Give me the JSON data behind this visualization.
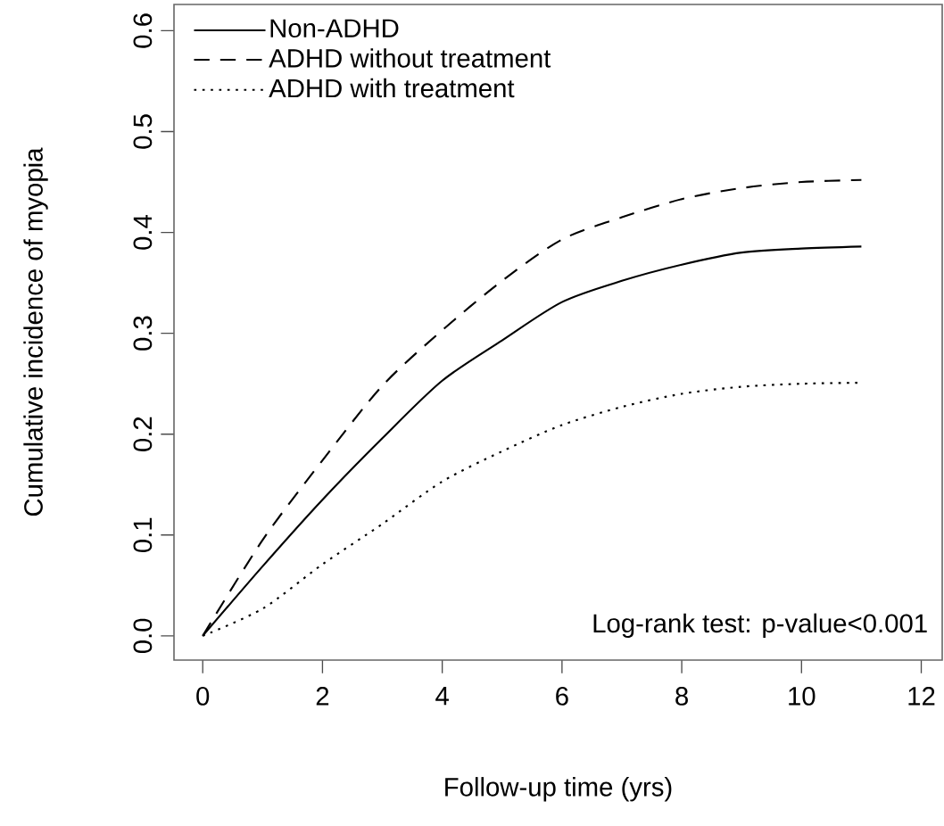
{
  "chart_data": {
    "type": "line",
    "xlabel": "Follow-up time (yrs)",
    "ylabel": "Cumulative incidence of myopia",
    "x": [
      0,
      1,
      2,
      3,
      4,
      5,
      6,
      7,
      8,
      9,
      10,
      11
    ],
    "series": [
      {
        "name": "Non-ADHD",
        "color": "#000000",
        "line_style": "solid",
        "values": [
          0,
          0.069,
          0.135,
          0.196,
          0.253,
          0.293,
          0.331,
          0.352,
          0.368,
          0.38,
          0.384,
          0.386
        ]
      },
      {
        "name": "ADHD without treatment",
        "color": "#000000",
        "line_style": "dashed",
        "values": [
          0,
          0.095,
          0.174,
          0.248,
          0.303,
          0.352,
          0.393,
          0.415,
          0.433,
          0.444,
          0.45,
          0.452
        ]
      },
      {
        "name": "ADHD with treatment",
        "color": "#000000",
        "line_style": "dotted",
        "values": [
          0,
          0.027,
          0.071,
          0.111,
          0.153,
          0.183,
          0.209,
          0.227,
          0.24,
          0.247,
          0.25,
          0.251
        ]
      }
    ],
    "xlim": [
      -0.48,
      12.35
    ],
    "ylim": [
      -0.024,
      0.626
    ],
    "xticks": [
      0,
      2,
      4,
      6,
      8,
      10,
      12
    ],
    "yticks": [
      {
        "value": 0,
        "label": "0.0"
      },
      {
        "value": 0.1,
        "label": "0.1"
      },
      {
        "value": 0.2,
        "label": "0.2"
      },
      {
        "value": 0.3,
        "label": "0.3"
      },
      {
        "value": 0.4,
        "label": "0.4"
      },
      {
        "value": 0.5,
        "label": "0.5"
      },
      {
        "value": 0.6,
        "label": "0.6"
      }
    ],
    "legend": "top left",
    "annotations": [
      "Log-rank test: p-value<0.001"
    ]
  }
}
